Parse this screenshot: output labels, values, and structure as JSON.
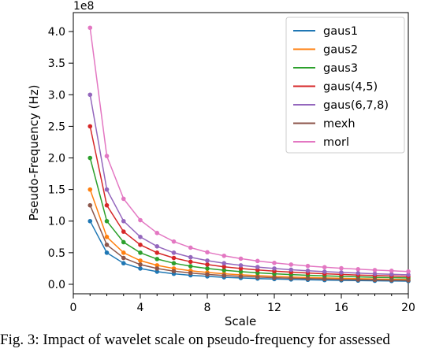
{
  "caption": "Fig. 3: Impact of wavelet scale on pseudo-frequency for assessed",
  "chart_data": {
    "type": "line",
    "title": "",
    "xlabel": "Scale",
    "ylabel": "Pseudo-Frequency (Hz)",
    "y_offset_label": "1e8",
    "xlim": [
      0,
      20
    ],
    "ylim": [
      -0.15,
      4.3
    ],
    "x_ticks": [
      0,
      4,
      8,
      12,
      16,
      20
    ],
    "y_ticks": [
      0.0,
      0.5,
      1.0,
      1.5,
      2.0,
      2.5,
      3.0,
      3.5,
      4.0
    ],
    "y_tick_labels": [
      "0.0",
      "0.5",
      "1.0",
      "1.5",
      "2.0",
      "2.5",
      "3.0",
      "3.5",
      "4.0"
    ],
    "legend_position": "top-right",
    "grid": false,
    "x": [
      1,
      2,
      3,
      4,
      5,
      6,
      7,
      8,
      9,
      10,
      11,
      12,
      13,
      14,
      15,
      16,
      17,
      18,
      19,
      20
    ],
    "series": [
      {
        "name": "gaus1",
        "color": "#1f77b4",
        "base": 1.0
      },
      {
        "name": "gaus2",
        "color": "#ff7f0e",
        "base": 1.5
      },
      {
        "name": "gaus3",
        "color": "#2ca02c",
        "base": 2.0
      },
      {
        "name": "gaus(4,5)",
        "color": "#d62728",
        "base": 2.5
      },
      {
        "name": "gaus(6,7,8)",
        "color": "#9467bd",
        "base": 3.0
      },
      {
        "name": "mexh",
        "color": "#8c564b",
        "base": 1.25
      },
      {
        "name": "morl",
        "color": "#e377c2",
        "base": 4.06
      }
    ]
  }
}
